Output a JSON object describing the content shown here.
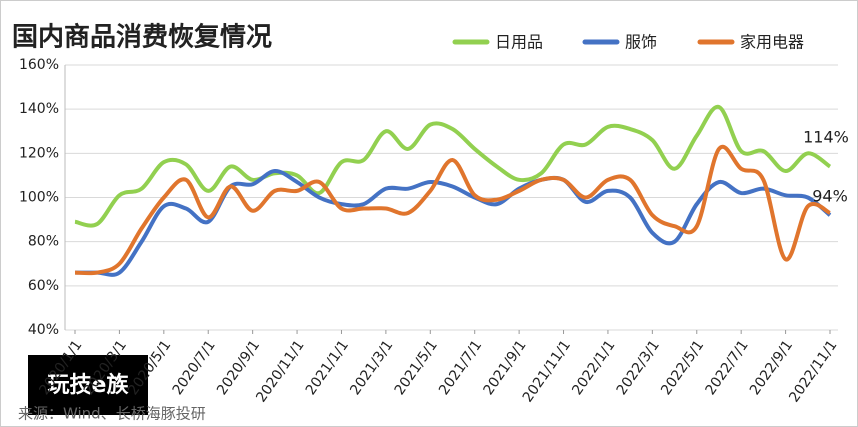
{
  "chart_data": {
    "type": "line",
    "title": "国内商品消费恢复情况",
    "source": "来源：Wind、长桥海豚投研",
    "logo": "玩技e族",
    "categories": [
      "2020/1/1",
      null,
      "2020/3/1",
      null,
      "2020/5/1",
      null,
      "2020/7/1",
      null,
      "2020/9/1",
      null,
      "2020/11/1",
      null,
      "2021/1/1",
      null,
      "2021/3/1",
      null,
      "2021/5/1",
      null,
      "2021/7/1",
      null,
      "2021/9/1",
      null,
      "2021/11/1",
      null,
      "2022/1/1",
      null,
      "2022/3/1",
      null,
      "2022/5/1",
      null,
      "2022/7/1",
      null,
      "2022/9/1",
      null,
      "2022/11/1"
    ],
    "series": [
      {
        "name": "日用品",
        "color": "#92d050",
        "values": [
          89,
          88,
          101,
          104,
          116,
          115,
          103,
          114,
          108,
          111,
          110,
          102,
          116,
          117,
          130,
          122,
          133,
          131,
          122,
          114,
          108,
          111,
          124,
          124,
          132,
          131,
          126,
          113,
          128,
          141,
          121,
          121,
          112,
          120,
          114
        ]
      },
      {
        "name": "服饰",
        "color": "#4472c4",
        "values": [
          66,
          66,
          66,
          80,
          96,
          95,
          89,
          105,
          106,
          112,
          107,
          100,
          97,
          97,
          104,
          104,
          107,
          105,
          100,
          97,
          104,
          108,
          108,
          98,
          103,
          100,
          84,
          80,
          97,
          107,
          102,
          104,
          101,
          100,
          92
        ]
      },
      {
        "name": "家用电器",
        "color": "#e0752d",
        "values": [
          66,
          66,
          70,
          86,
          100,
          108,
          91,
          105,
          94,
          103,
          103,
          107,
          95,
          95,
          95,
          93,
          103,
          117,
          101,
          99,
          103,
          108,
          108,
          100,
          108,
          108,
          92,
          87,
          87,
          122,
          113,
          108,
          72,
          96,
          93
        ]
      }
    ],
    "annotations": [
      "114%",
      "94%"
    ],
    "ylim": [
      40,
      160
    ],
    "yticks": [
      {
        "value": 40,
        "label": "40%"
      },
      {
        "value": 60,
        "label": "60%"
      },
      {
        "value": 80,
        "label": "80%"
      },
      {
        "value": 100,
        "label": "100%"
      },
      {
        "value": 120,
        "label": "120%"
      },
      {
        "value": 140,
        "label": "140%"
      },
      {
        "value": 160,
        "label": "160%"
      }
    ],
    "grid": true,
    "legend": "top"
  }
}
